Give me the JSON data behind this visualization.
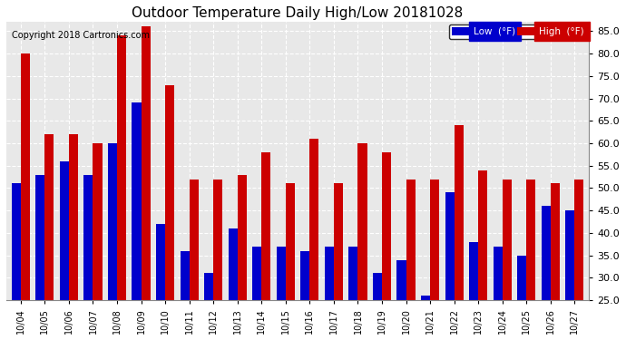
{
  "title": "Outdoor Temperature Daily High/Low 20181028",
  "copyright": "Copyright 2018 Cartronics.com",
  "dates": [
    "10/04",
    "10/05",
    "10/06",
    "10/07",
    "10/08",
    "10/09",
    "10/10",
    "10/11",
    "10/12",
    "10/13",
    "10/14",
    "10/15",
    "10/16",
    "10/17",
    "10/18",
    "10/19",
    "10/20",
    "10/21",
    "10/22",
    "10/23",
    "10/24",
    "10/25",
    "10/26",
    "10/27"
  ],
  "high": [
    80,
    62,
    62,
    60,
    84,
    86,
    73,
    52,
    52,
    53,
    58,
    51,
    61,
    51,
    60,
    58,
    52,
    52,
    64,
    54,
    52,
    52,
    51,
    52
  ],
  "low": [
    51,
    53,
    56,
    53,
    60,
    69,
    42,
    36,
    31,
    41,
    37,
    37,
    36,
    37,
    37,
    31,
    34,
    26,
    49,
    38,
    37,
    35,
    46,
    45
  ],
  "ylim": [
    25,
    87
  ],
  "yticks": [
    25.0,
    30.0,
    35.0,
    40.0,
    45.0,
    50.0,
    55.0,
    60.0,
    65.0,
    70.0,
    75.0,
    80.0,
    85.0
  ],
  "low_color": "#0000cc",
  "high_color": "#cc0000",
  "bg_color": "#ffffff",
  "plot_bg_color": "#e8e8e8",
  "grid_color": "#ffffff",
  "title_fontsize": 11,
  "copyright_fontsize": 7,
  "legend_label_low": "Low  (°F)",
  "legend_label_high": "High  (°F)",
  "bar_width": 0.38
}
